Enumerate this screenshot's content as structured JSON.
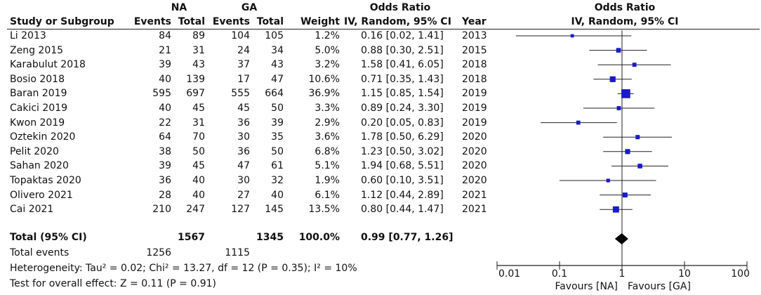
{
  "header": {
    "group1": "NA",
    "group2": "GA",
    "or_title": "Odds Ratio",
    "plot_title": "Odds Ratio",
    "cols": {
      "study": "Study or Subgroup",
      "events1": "Events",
      "total1": "Total",
      "events2": "Events",
      "total2": "Total",
      "weight": "Weight",
      "or_method": "IV, Random, 95% CI",
      "year": "Year",
      "plot_method": "IV, Random, 95% CI"
    }
  },
  "rows": [
    {
      "study": "Li 2013",
      "e1": "84",
      "t1": "89",
      "e2": "104",
      "t2": "105",
      "weight": "1.2%",
      "ci": "0.16 [0.02, 1.41]",
      "year": "2013"
    },
    {
      "study": "Zeng 2015",
      "e1": "21",
      "t1": "31",
      "e2": "24",
      "t2": "34",
      "weight": "5.0%",
      "ci": "0.88 [0.30, 2.51]",
      "year": "2015"
    },
    {
      "study": "Karabulut 2018",
      "e1": "39",
      "t1": "43",
      "e2": "37",
      "t2": "43",
      "weight": "3.2%",
      "ci": "1.58 [0.41, 6.05]",
      "year": "2018"
    },
    {
      "study": "Bosio 2018",
      "e1": "40",
      "t1": "139",
      "e2": "17",
      "t2": "47",
      "weight": "10.6%",
      "ci": "0.71 [0.35, 1.43]",
      "year": "2018"
    },
    {
      "study": "Baran 2019",
      "e1": "595",
      "t1": "697",
      "e2": "555",
      "t2": "664",
      "weight": "36.9%",
      "ci": "1.15 [0.85, 1.54]",
      "year": "2019"
    },
    {
      "study": "Cakici 2019",
      "e1": "40",
      "t1": "45",
      "e2": "45",
      "t2": "50",
      "weight": "3.3%",
      "ci": "0.89 [0.24, 3.30]",
      "year": "2019"
    },
    {
      "study": "Kwon 2019",
      "e1": "22",
      "t1": "31",
      "e2": "36",
      "t2": "39",
      "weight": "2.9%",
      "ci": "0.20 [0.05, 0.83]",
      "year": "2019"
    },
    {
      "study": "Oztekin 2020",
      "e1": "64",
      "t1": "70",
      "e2": "30",
      "t2": "35",
      "weight": "3.6%",
      "ci": "1.78 [0.50, 6.29]",
      "year": "2020"
    },
    {
      "study": "Pelit 2020",
      "e1": "38",
      "t1": "50",
      "e2": "36",
      "t2": "50",
      "weight": "6.8%",
      "ci": "1.23 [0.50, 3.02]",
      "year": "2020"
    },
    {
      "study": "Sahan 2020",
      "e1": "39",
      "t1": "45",
      "e2": "47",
      "t2": "61",
      "weight": "5.1%",
      "ci": "1.94 [0.68, 5.51]",
      "year": "2020"
    },
    {
      "study": "Topaktas 2020",
      "e1": "36",
      "t1": "40",
      "e2": "30",
      "t2": "32",
      "weight": "1.9%",
      "ci": "0.60 [0.10, 3.51]",
      "year": "2020"
    },
    {
      "study": "Olivero 2021",
      "e1": "28",
      "t1": "40",
      "e2": "27",
      "t2": "40",
      "weight": "6.1%",
      "ci": "1.12 [0.44, 2.89]",
      "year": "2021"
    },
    {
      "study": "Cai 2021",
      "e1": "210",
      "t1": "247",
      "e2": "127",
      "t2": "145",
      "weight": "13.5%",
      "ci": "0.80 [0.44, 1.47]",
      "year": "2021"
    }
  ],
  "total": {
    "label": "Total (95% CI)",
    "t1": "1567",
    "t2": "1345",
    "weight": "100.0%",
    "ci": "0.99 [0.77, 1.26]"
  },
  "footer": {
    "events_label": "Total events",
    "events1": "1256",
    "events2": "1115",
    "heterogeneity": "Heterogeneity: Tau² = 0.02; Chi² = 13.27, df = 12 (P = 0.35); I² = 10%",
    "overall": "Test for overall effect: Z = 0.11 (P = 0.91)"
  },
  "chart_data": {
    "type": "forest",
    "scale": "log",
    "xlim": [
      0.01,
      100
    ],
    "ticks": [
      0.01,
      0.1,
      1,
      10,
      100
    ],
    "tick_labels": [
      "0.01",
      "0.1",
      "1",
      "10",
      "100"
    ],
    "favours_left": "Favours [NA]",
    "favours_right": "Favours [GA]",
    "marker_color": "#1a1acc",
    "studies": [
      {
        "label": "Li 2013",
        "or": 0.16,
        "lo": 0.02,
        "hi": 1.41,
        "weight": 1.2
      },
      {
        "label": "Zeng 2015",
        "or": 0.88,
        "lo": 0.3,
        "hi": 2.51,
        "weight": 5.0
      },
      {
        "label": "Karabulut 2018",
        "or": 1.58,
        "lo": 0.41,
        "hi": 6.05,
        "weight": 3.2
      },
      {
        "label": "Bosio 2018",
        "or": 0.71,
        "lo": 0.35,
        "hi": 1.43,
        "weight": 10.6
      },
      {
        "label": "Baran 2019",
        "or": 1.15,
        "lo": 0.85,
        "hi": 1.54,
        "weight": 36.9
      },
      {
        "label": "Cakici 2019",
        "or": 0.89,
        "lo": 0.24,
        "hi": 3.3,
        "weight": 3.3
      },
      {
        "label": "Kwon 2019",
        "or": 0.2,
        "lo": 0.05,
        "hi": 0.83,
        "weight": 2.9
      },
      {
        "label": "Oztekin 2020",
        "or": 1.78,
        "lo": 0.5,
        "hi": 6.29,
        "weight": 3.6
      },
      {
        "label": "Pelit 2020",
        "or": 1.23,
        "lo": 0.5,
        "hi": 3.02,
        "weight": 6.8
      },
      {
        "label": "Sahan 2020",
        "or": 1.94,
        "lo": 0.68,
        "hi": 5.51,
        "weight": 5.1
      },
      {
        "label": "Topaktas 2020",
        "or": 0.6,
        "lo": 0.1,
        "hi": 3.51,
        "weight": 1.9
      },
      {
        "label": "Olivero 2021",
        "or": 1.12,
        "lo": 0.44,
        "hi": 2.89,
        "weight": 6.1
      },
      {
        "label": "Cai 2021",
        "or": 0.8,
        "lo": 0.44,
        "hi": 1.47,
        "weight": 13.5
      }
    ],
    "pooled": {
      "or": 0.99,
      "lo": 0.77,
      "hi": 1.26
    }
  }
}
